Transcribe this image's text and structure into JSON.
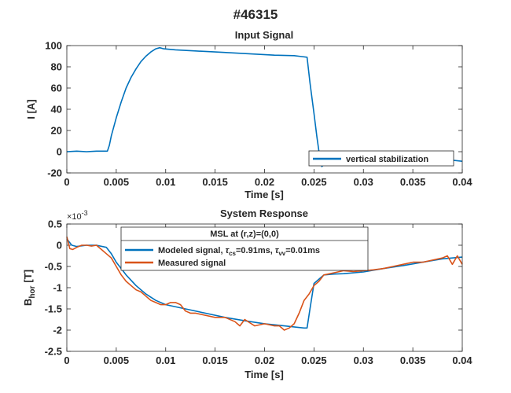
{
  "figure_title": "#46315",
  "chart_data": [
    {
      "type": "line",
      "title": "Input Signal",
      "xlabel": "Time [s]",
      "ylabel": "I [A]",
      "xlim": [
        0,
        0.04
      ],
      "ylim": [
        -20,
        100
      ],
      "xticks": [
        0,
        0.005,
        0.01,
        0.015,
        0.02,
        0.025,
        0.03,
        0.035,
        0.04
      ],
      "xtick_labels": [
        "0",
        "0.005",
        "0.01",
        "0.015",
        "0.02",
        "0.025",
        "0.03",
        "0.035",
        "0.04"
      ],
      "yticks": [
        -20,
        0,
        20,
        40,
        60,
        80,
        100
      ],
      "ytick_labels": [
        "-20",
        "0",
        "20",
        "40",
        "60",
        "80",
        "100"
      ],
      "grid": false,
      "legend": {
        "position": "bottom-right",
        "title": ""
      },
      "series": [
        {
          "name": "vertical stabilization",
          "color": "#0072BD",
          "x": [
            0,
            0.001,
            0.002,
            0.003,
            0.0041,
            0.0043,
            0.0045,
            0.005,
            0.0055,
            0.006,
            0.0065,
            0.007,
            0.0075,
            0.008,
            0.0085,
            0.009,
            0.0094,
            0.0098,
            0.011,
            0.013,
            0.015,
            0.017,
            0.019,
            0.021,
            0.023,
            0.0243,
            0.0246,
            0.025,
            0.0253,
            0.0256,
            0.0258,
            0.026,
            0.027,
            0.028,
            0.029,
            0.03,
            0.032,
            0.034,
            0.036,
            0.038,
            0.039,
            0.04
          ],
          "y": [
            0,
            0.5,
            0,
            0.5,
            0.5,
            6,
            15,
            32,
            47,
            60,
            70,
            78,
            85,
            90,
            94,
            97,
            98,
            97,
            96,
            95,
            94,
            93,
            92,
            91,
            90.5,
            89,
            65,
            36,
            14,
            -6,
            -14,
            -12,
            -10,
            -11,
            -9,
            -10,
            -9,
            -10,
            -9,
            -10,
            -8,
            -9
          ]
        }
      ]
    },
    {
      "type": "line",
      "title": "System Response",
      "xlabel": "Time [s]",
      "ylabel_main": "B",
      "ylabel_sub": "hor",
      "ylabel_unit": "[T]",
      "exponent_base": "×10",
      "exponent_power": "-3",
      "xlim": [
        0,
        0.04
      ],
      "ylim": [
        -0.0025,
        0.0005
      ],
      "xticks": [
        0,
        0.005,
        0.01,
        0.015,
        0.02,
        0.025,
        0.03,
        0.035,
        0.04
      ],
      "xtick_labels": [
        "0",
        "0.005",
        "0.01",
        "0.015",
        "0.02",
        "0.025",
        "0.03",
        "0.035",
        "0.04"
      ],
      "yticks": [
        -0.0025,
        -0.002,
        -0.0015,
        -0.001,
        -0.0005,
        0,
        0.0005
      ],
      "ytick_labels": [
        "-2.5",
        "-2",
        "-1.5",
        "-1",
        "-0.5",
        "0",
        "0.5"
      ],
      "grid": false,
      "legend": {
        "position": "top",
        "title": "MSL at (r,z)=(0,0)"
      },
      "series": [
        {
          "name_prefix": "Modeled signal, ",
          "tau1": "τ",
          "tau1_sub": "cs",
          "tau1_value": "=0.91ms, ",
          "tau2": "τ",
          "tau2_sub": "vv",
          "tau2_value": "=0.01ms",
          "color": "#0072BD",
          "x": [
            0,
            0.0005,
            0.001,
            0.002,
            0.003,
            0.004,
            0.0045,
            0.005,
            0.006,
            0.007,
            0.008,
            0.009,
            0.01,
            0.012,
            0.014,
            0.016,
            0.018,
            0.02,
            0.022,
            0.024,
            0.0243,
            0.0246,
            0.025,
            0.026,
            0.027,
            0.028,
            0.03,
            0.032,
            0.034,
            0.036,
            0.038,
            0.039,
            0.04
          ],
          "y": [
            0.00015,
            0,
            -3e-05,
            0,
            0,
            -5e-05,
            -0.0002,
            -0.0004,
            -0.0007,
            -0.00095,
            -0.00115,
            -0.0013,
            -0.0014,
            -0.0015,
            -0.0016,
            -0.0017,
            -0.00178,
            -0.00185,
            -0.0019,
            -0.00195,
            -0.00195,
            -0.0015,
            -0.0009,
            -0.0007,
            -0.00068,
            -0.00067,
            -0.00063,
            -0.00055,
            -0.00048,
            -0.0004,
            -0.00032,
            -0.0003,
            -0.00028
          ]
        },
        {
          "name": "Measured signal",
          "color": "#D95319",
          "x": [
            0,
            0.0003,
            0.0006,
            0.001,
            0.0015,
            0.002,
            0.0025,
            0.003,
            0.0035,
            0.004,
            0.0045,
            0.005,
            0.0055,
            0.006,
            0.0065,
            0.007,
            0.0075,
            0.008,
            0.0085,
            0.009,
            0.0095,
            0.01,
            0.0105,
            0.011,
            0.0115,
            0.012,
            0.0125,
            0.013,
            0.014,
            0.015,
            0.016,
            0.017,
            0.0175,
            0.018,
            0.019,
            0.02,
            0.021,
            0.0215,
            0.022,
            0.0225,
            0.023,
            0.0235,
            0.024,
            0.0245,
            0.025,
            0.0255,
            0.026,
            0.027,
            0.028,
            0.029,
            0.03,
            0.031,
            0.032,
            0.033,
            0.034,
            0.035,
            0.036,
            0.037,
            0.038,
            0.0385,
            0.039,
            0.0395,
            0.04
          ],
          "y": [
            0.0002,
            -8e-05,
            -0.0001,
            -5e-05,
            0,
            0,
            -2e-05,
            0,
            -0.0001,
            -0.0002,
            -0.0003,
            -0.0005,
            -0.0007,
            -0.00085,
            -0.00095,
            -0.00105,
            -0.0011,
            -0.0012,
            -0.0013,
            -0.00135,
            -0.0014,
            -0.0014,
            -0.00135,
            -0.00135,
            -0.0014,
            -0.00155,
            -0.0016,
            -0.0016,
            -0.00165,
            -0.0017,
            -0.0017,
            -0.0018,
            -0.0019,
            -0.00175,
            -0.0019,
            -0.00185,
            -0.0019,
            -0.0019,
            -0.002,
            -0.00195,
            -0.00185,
            -0.0016,
            -0.0013,
            -0.00115,
            -0.00095,
            -0.00085,
            -0.0007,
            -0.00065,
            -0.0006,
            -0.00062,
            -0.0006,
            -0.00058,
            -0.00055,
            -0.0005,
            -0.00045,
            -0.0004,
            -0.0004,
            -0.00035,
            -0.0003,
            -0.00025,
            -0.00045,
            -0.00025,
            -0.00045
          ]
        }
      ]
    }
  ]
}
